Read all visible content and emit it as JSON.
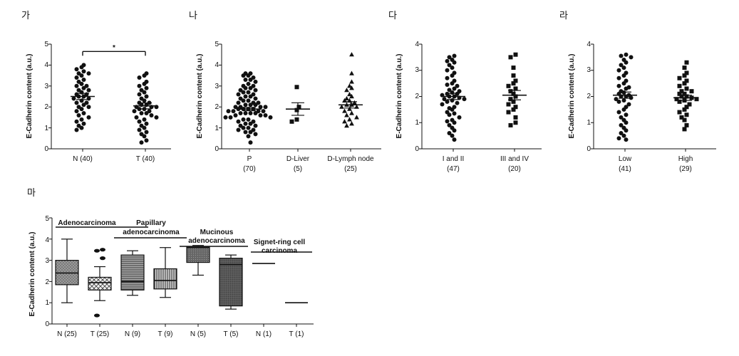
{
  "chart_data": [
    {
      "type": "scatter",
      "panel_label": "가",
      "ylabel": "E-Cadherin  content (a.u.)",
      "ylim": [
        0,
        5
      ],
      "yticks": [
        "0",
        "1",
        "2",
        "3",
        "4",
        "5"
      ],
      "categories": [
        "N (40)",
        "T (40)"
      ],
      "markers": [
        "circle",
        "circle"
      ],
      "means": [
        2.5,
        2.05
      ],
      "sem": [
        0.15,
        0.14
      ],
      "points": [
        [
          4.0,
          3.9,
          3.8,
          3.7,
          3.6,
          3.6,
          3.5,
          3.4,
          3.3,
          3.2,
          3.1,
          3.0,
          3.0,
          2.9,
          2.8,
          2.8,
          2.7,
          2.6,
          2.6,
          2.5,
          2.5,
          2.4,
          2.4,
          2.3,
          2.2,
          2.2,
          2.1,
          2.0,
          2.0,
          1.9,
          1.8,
          1.7,
          1.6,
          1.5,
          1.4,
          1.3,
          1.2,
          1.1,
          1.0,
          0.9
        ],
        [
          3.6,
          3.5,
          3.4,
          3.2,
          3.1,
          3.0,
          2.9,
          2.8,
          2.7,
          2.6,
          2.5,
          2.4,
          2.3,
          2.2,
          2.2,
          2.1,
          2.1,
          2.0,
          2.0,
          2.0,
          1.9,
          1.9,
          1.8,
          1.8,
          1.7,
          1.7,
          1.6,
          1.5,
          1.5,
          1.4,
          1.3,
          1.2,
          1.1,
          1.0,
          0.9,
          0.8,
          0.7,
          0.6,
          0.4,
          0.3
        ]
      ],
      "significance": "*"
    },
    {
      "type": "scatter",
      "panel_label": "나",
      "ylabel": "E-Cadherin content (a.u.)",
      "ylim": [
        0,
        5
      ],
      "yticks": [
        "0",
        "1",
        "2",
        "3",
        "4",
        "5"
      ],
      "categories": [
        "P",
        "D-Liver",
        "D-Lymph node"
      ],
      "category_counts": [
        "(70)",
        "(5)",
        "(25)"
      ],
      "markers": [
        "circle",
        "square",
        "triangle"
      ],
      "means": [
        1.9,
        1.9,
        2.1
      ],
      "sem": [
        0.08,
        0.3,
        0.15
      ],
      "points": [
        [
          3.6,
          3.6,
          3.5,
          3.5,
          3.4,
          3.3,
          3.3,
          3.2,
          3.1,
          3.0,
          3.0,
          2.9,
          2.9,
          2.8,
          2.8,
          2.7,
          2.7,
          2.6,
          2.6,
          2.5,
          2.5,
          2.4,
          2.4,
          2.3,
          2.3,
          2.2,
          2.2,
          2.2,
          2.1,
          2.1,
          2.1,
          2.0,
          2.0,
          2.0,
          2.0,
          1.9,
          1.9,
          1.9,
          1.9,
          1.8,
          1.8,
          1.8,
          1.8,
          1.7,
          1.7,
          1.7,
          1.7,
          1.6,
          1.6,
          1.6,
          1.5,
          1.5,
          1.5,
          1.4,
          1.4,
          1.3,
          1.3,
          1.2,
          1.2,
          1.1,
          1.1,
          1.0,
          1.0,
          0.9,
          0.9,
          0.8,
          0.8,
          0.7,
          0.6,
          0.3
        ],
        [
          2.95,
          2.0,
          1.85,
          1.4,
          1.3
        ],
        [
          4.5,
          3.6,
          3.2,
          3.0,
          2.9,
          2.8,
          2.6,
          2.5,
          2.4,
          2.3,
          2.3,
          2.2,
          2.1,
          2.1,
          2.0,
          2.0,
          1.9,
          1.8,
          1.7,
          1.6,
          1.5,
          1.4,
          1.3,
          1.2,
          1.1
        ]
      ]
    },
    {
      "type": "scatter",
      "panel_label": "다",
      "ylabel": "E-Cadherin content (a.u.)",
      "ylim": [
        0,
        4
      ],
      "yticks": [
        "0",
        "1",
        "2",
        "3",
        "4"
      ],
      "categories": [
        "I and II",
        "III and IV"
      ],
      "category_counts": [
        "(47)",
        "(20)"
      ],
      "markers": [
        "circle",
        "square"
      ],
      "means": [
        2.0,
        2.05
      ],
      "sem": [
        0.12,
        0.18
      ],
      "points": [
        [
          3.55,
          3.5,
          3.4,
          3.35,
          3.3,
          3.2,
          3.1,
          3.0,
          2.9,
          2.8,
          2.7,
          2.6,
          2.5,
          2.45,
          2.4,
          2.3,
          2.25,
          2.2,
          2.15,
          2.1,
          2.1,
          2.05,
          2.0,
          2.0,
          1.95,
          1.9,
          1.9,
          1.85,
          1.8,
          1.75,
          1.7,
          1.6,
          1.55,
          1.5,
          1.4,
          1.35,
          1.3,
          1.2,
          1.1,
          1.05,
          1.0,
          0.9,
          0.8,
          0.7,
          0.6,
          0.5,
          0.35
        ],
        [
          3.6,
          3.5,
          3.1,
          2.8,
          2.6,
          2.5,
          2.4,
          2.3,
          2.2,
          2.1,
          2.0,
          1.9,
          1.8,
          1.7,
          1.6,
          1.5,
          1.4,
          1.2,
          1.0,
          0.9
        ]
      ]
    },
    {
      "type": "scatter",
      "panel_label": "라",
      "ylabel": "E-Cadherin content (a.u.)",
      "ylim": [
        0,
        4
      ],
      "yticks": [
        "0",
        "1",
        "2",
        "3",
        "4"
      ],
      "categories": [
        "Low",
        "High"
      ],
      "category_counts": [
        "(41)",
        "(29)"
      ],
      "markers": [
        "circle",
        "square"
      ],
      "means": [
        2.05,
        1.95
      ],
      "sem": [
        0.12,
        0.1
      ],
      "points": [
        [
          3.6,
          3.55,
          3.5,
          3.4,
          3.3,
          3.2,
          3.1,
          3.0,
          2.9,
          2.8,
          2.7,
          2.6,
          2.5,
          2.4,
          2.35,
          2.3,
          2.2,
          2.15,
          2.1,
          2.05,
          2.0,
          2.0,
          1.95,
          1.9,
          1.85,
          1.8,
          1.7,
          1.6,
          1.5,
          1.4,
          1.3,
          1.2,
          1.1,
          1.0,
          0.9,
          0.8,
          0.7,
          0.6,
          0.5,
          0.4,
          0.35
        ],
        [
          3.3,
          3.1,
          2.9,
          2.8,
          2.7,
          2.6,
          2.5,
          2.4,
          2.3,
          2.2,
          2.2,
          2.1,
          2.1,
          2.0,
          2.0,
          1.95,
          1.9,
          1.9,
          1.85,
          1.8,
          1.7,
          1.6,
          1.5,
          1.4,
          1.3,
          1.2,
          1.1,
          0.9,
          0.75
        ]
      ]
    },
    {
      "type": "box",
      "panel_label": "마",
      "ylabel": "E-Cadherin content (a.u.)",
      "ylim": [
        0,
        5
      ],
      "yticks": [
        "0",
        "1",
        "2",
        "3",
        "4",
        "5"
      ],
      "categories": [
        "N (25)",
        "T (25)",
        "N (9)",
        "T (9)",
        "N (5)",
        "T (5)",
        "N (1)",
        "T (1)"
      ],
      "groups": [
        "Adenocarcinoma",
        "Papillary adenocarcinoma",
        "Mucinous adenocarcinoma",
        "Signet-ring cell carcinoma"
      ],
      "boxes": [
        {
          "min": 1.0,
          "q1": 1.85,
          "median": 2.4,
          "q3": 3.0,
          "max": 4.0,
          "outliers": []
        },
        {
          "min": 1.1,
          "q1": 1.6,
          "median": 1.95,
          "q3": 2.2,
          "max": 2.7,
          "outliers": [
            3.5,
            3.45,
            3.1,
            0.4
          ]
        },
        {
          "min": 1.35,
          "q1": 1.6,
          "median": 2.0,
          "q3": 3.25,
          "max": 3.45,
          "outliers": []
        },
        {
          "min": 1.25,
          "q1": 1.65,
          "median": 2.05,
          "q3": 2.6,
          "max": 3.6,
          "outliers": []
        },
        {
          "min": 2.3,
          "q1": 2.9,
          "median": 3.6,
          "q3": 3.65,
          "max": 3.7,
          "outliers": []
        },
        {
          "min": 0.7,
          "q1": 0.85,
          "median": 2.8,
          "q3": 3.1,
          "max": 3.25,
          "outliers": []
        },
        {
          "min": 2.85,
          "q1": 2.85,
          "median": 2.85,
          "q3": 2.85,
          "max": 2.85,
          "outliers": []
        },
        {
          "min": 1.0,
          "q1": 1.0,
          "median": 1.0,
          "q3": 1.0,
          "max": 1.0,
          "outliers": []
        }
      ]
    }
  ]
}
